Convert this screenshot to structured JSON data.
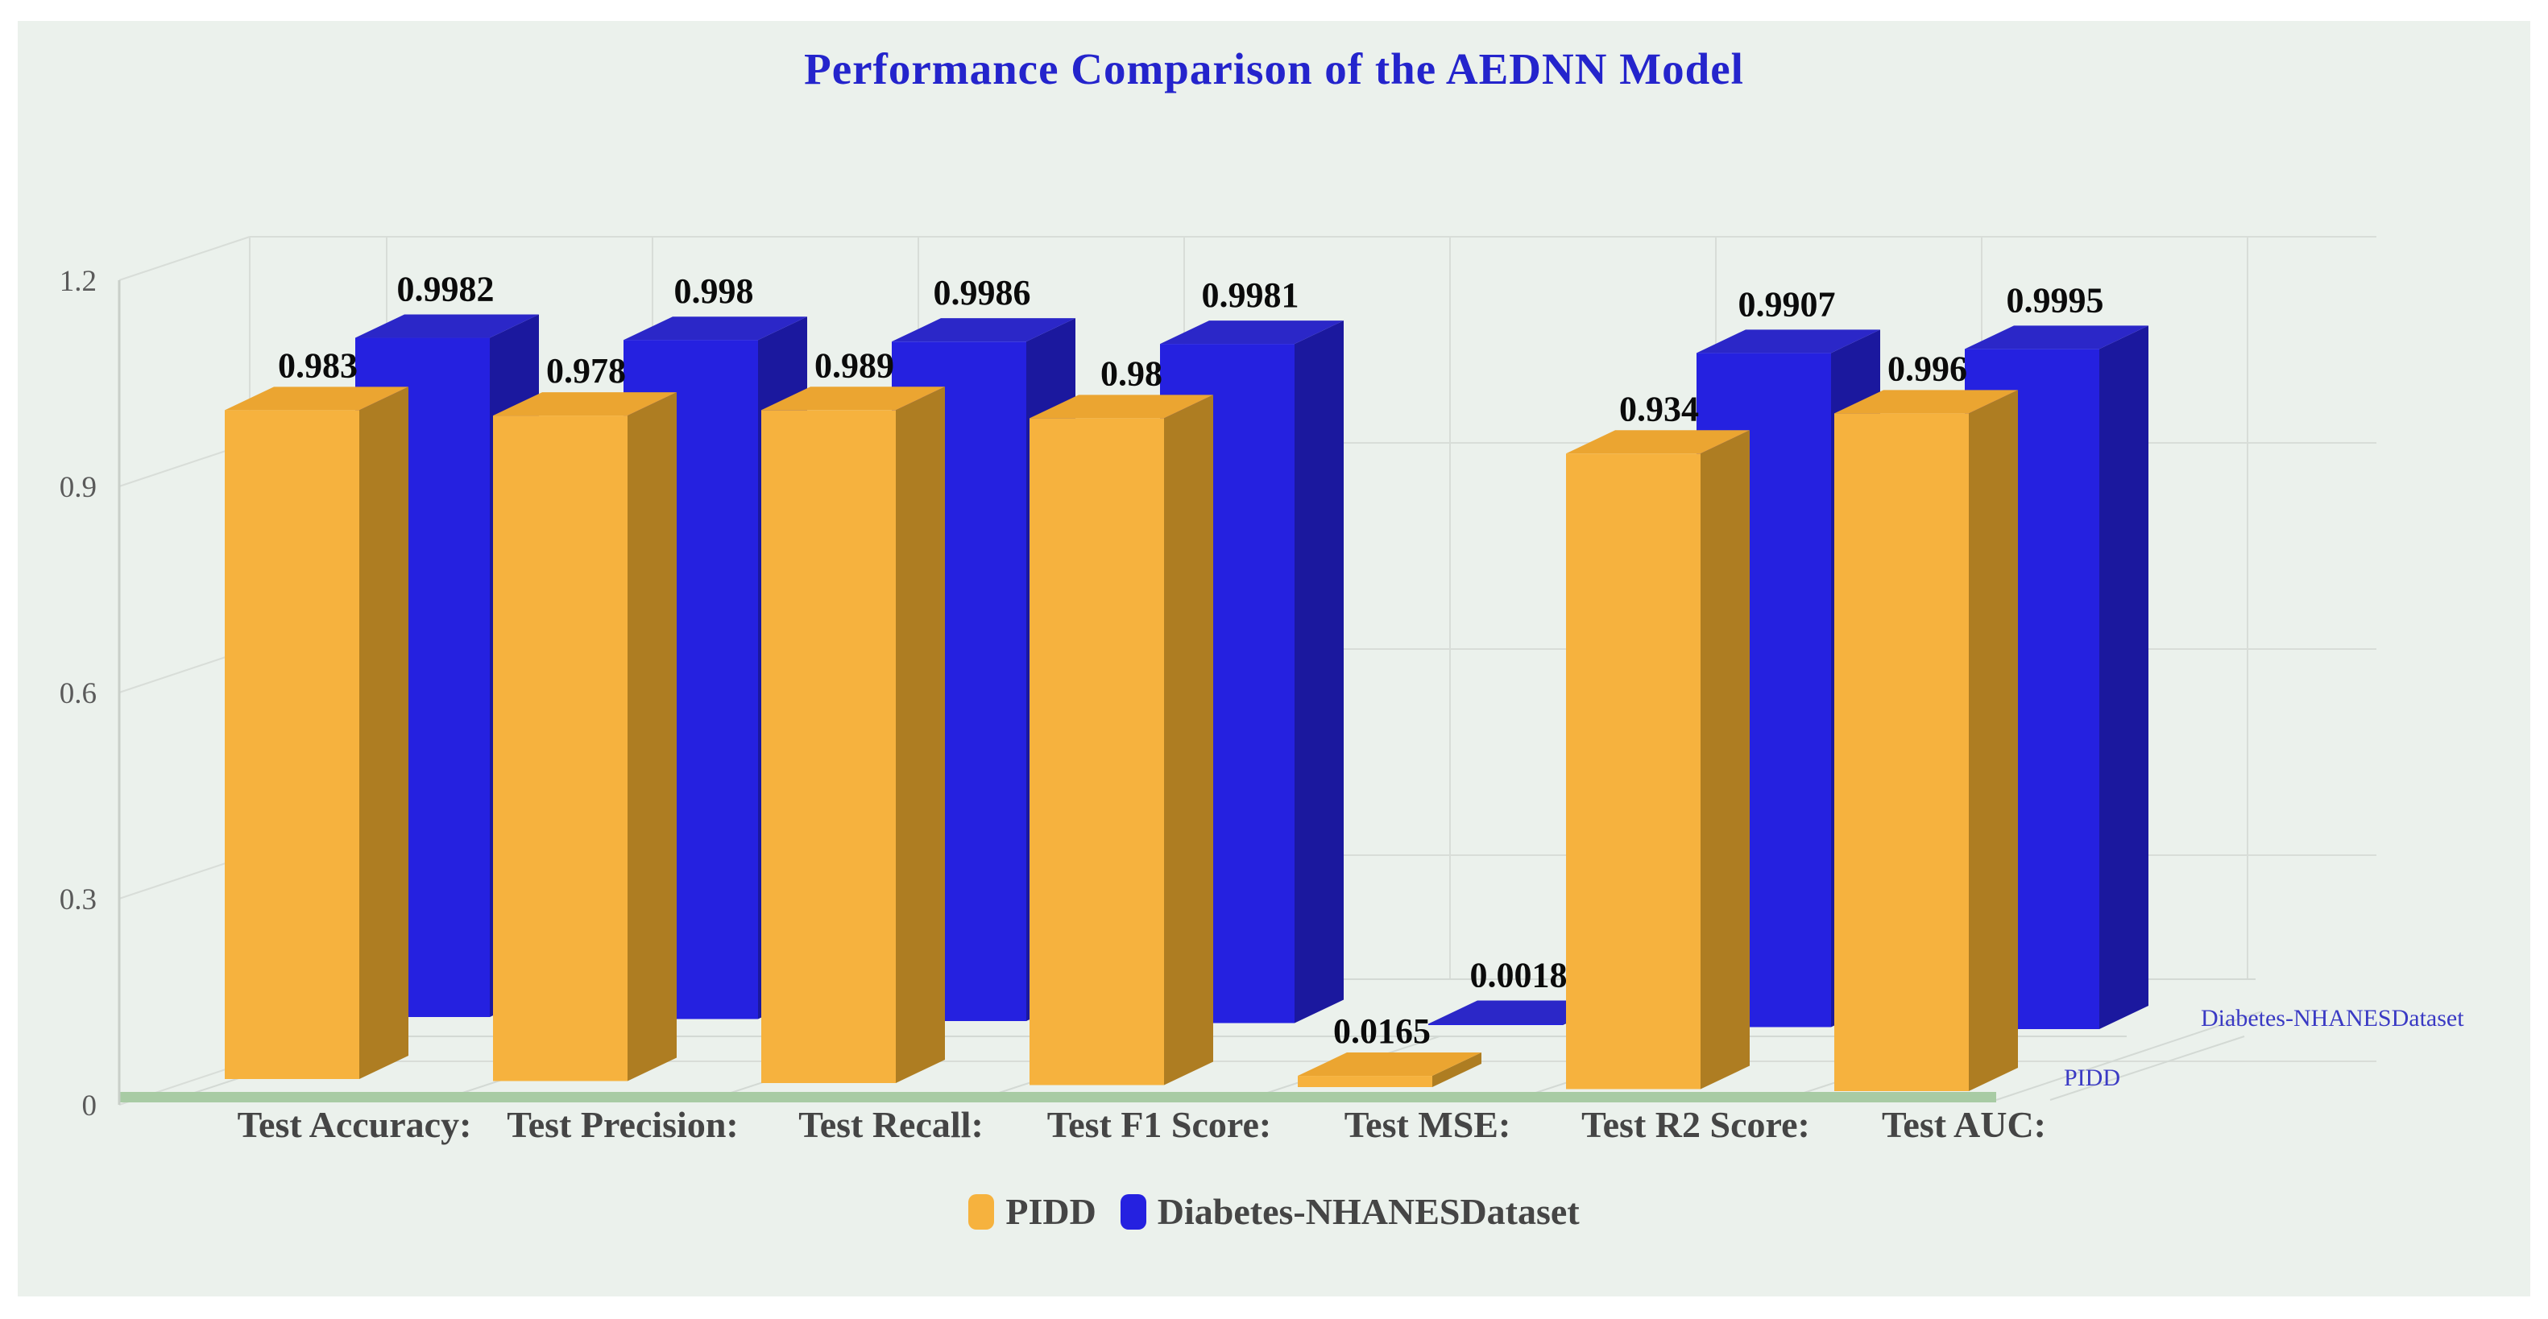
{
  "title": {
    "text": "Performance Comparison of the AEDNN Model",
    "color": "#2424CC"
  },
  "chart_data": {
    "type": "bar",
    "projection": "3d",
    "title": "Performance Comparison of the AEDNN Model",
    "categories": [
      "Test Accuracy:",
      "Test Precision:",
      "Test Recall:",
      "Test F1 Score:",
      "Test MSE:",
      "Test R2 Score:",
      "Test AUC:"
    ],
    "series": [
      {
        "name": "PIDD",
        "color": "#F6B23E",
        "color_top": "#EBA531",
        "color_side": "#AE7D22",
        "values": [
          0.983,
          0.978,
          0.989,
          0.98,
          0.0165,
          0.934,
          0.996
        ]
      },
      {
        "name": "Diabetes-NHANESDataset",
        "color": "#2521E0",
        "color_top": "#2B27C8",
        "color_side": "#1B189E",
        "values": [
          0.9982,
          0.998,
          0.9986,
          0.9981,
          0.0018,
          0.9907,
          0.9995
        ]
      }
    ],
    "y_axis": {
      "min": 0,
      "max": 1.2,
      "ticks": [
        0,
        0.3,
        0.6,
        0.9,
        1.2
      ]
    },
    "data_labels": "shown above each bar",
    "grid": true,
    "legend_position": "bottom"
  },
  "depth_axis": {
    "front_label": "PIDD",
    "back_label": "Diabetes-NHANESDataset",
    "color": "#3A3AC4"
  },
  "colors": {
    "panel_bg": "#EBF1EC",
    "grid": "#D8DDD8",
    "floor_line": "#D3D9D4",
    "axis": "#C9CFC9",
    "baseline_green": "#A8CBA4",
    "tick_text": "#5A5A5A",
    "category_text": "#454545",
    "value_text": "#0B0B0B",
    "legend_text": "#454545"
  }
}
